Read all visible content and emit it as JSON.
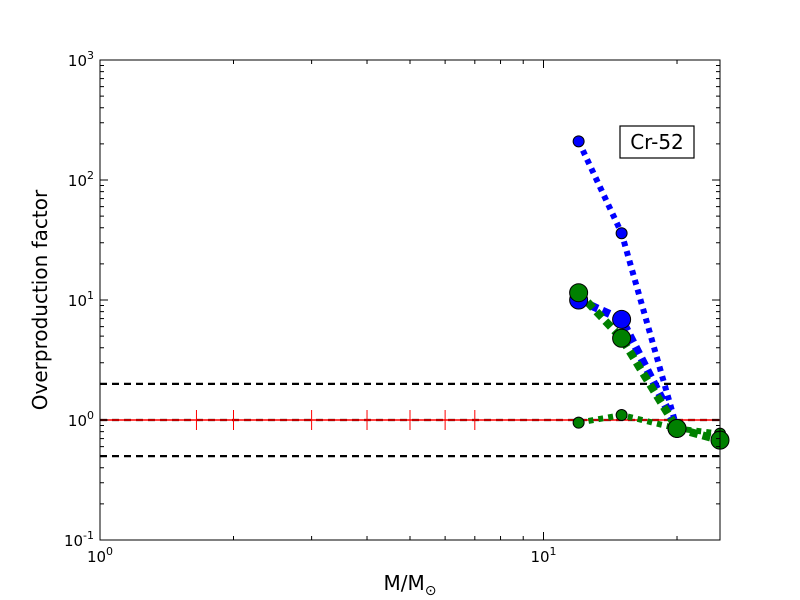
{
  "chart_data": {
    "type": "scatter",
    "title": "",
    "xlabel_main": "M/M",
    "xlabel_sub": "⊙",
    "ylabel": "Overproduction factor",
    "xscale": "log",
    "yscale": "log",
    "xlim": [
      1,
      25
    ],
    "ylim": [
      0.1,
      1000
    ],
    "grid": false,
    "annotation": "Cr-52",
    "x_ticks": [
      {
        "base": "10",
        "exp": "0",
        "value": 1
      },
      {
        "base": "10",
        "exp": "1",
        "value": 10
      }
    ],
    "y_ticks": [
      {
        "base": "10",
        "exp": "-1",
        "value": 0.1
      },
      {
        "base": "10",
        "exp": "0",
        "value": 1
      },
      {
        "base": "10",
        "exp": "1",
        "value": 10
      },
      {
        "base": "10",
        "exp": "2",
        "value": 100
      },
      {
        "base": "10",
        "exp": "3",
        "value": 1000
      }
    ],
    "reference_lines": [
      {
        "y": 2,
        "style": "dashed",
        "color": "#000000"
      },
      {
        "y": 1,
        "style": "dashed",
        "color": "#000000"
      },
      {
        "y": 0.5,
        "style": "dashed",
        "color": "#000000"
      },
      {
        "y": 1,
        "style": "solid",
        "color": "#ff0000"
      }
    ],
    "red_tick_x": [
      1.65,
      2,
      3,
      4,
      5,
      6,
      7
    ],
    "series": [
      {
        "color": "#0000ff",
        "x": [
          12,
          15,
          20
        ],
        "y": [
          210,
          36,
          0.85
        ],
        "marker_size": "small",
        "line_width": "thin"
      },
      {
        "color": "#0000ff",
        "x": [
          12,
          15,
          20
        ],
        "y": [
          10,
          6.9,
          0.85
        ],
        "marker_size": "large",
        "line_width": "thick"
      },
      {
        "color": "#008000",
        "x": [
          12,
          15,
          20,
          25
        ],
        "y": [
          0.95,
          1.1,
          0.85,
          0.77
        ],
        "marker_size": "small",
        "line_width": "thin"
      },
      {
        "color": "#008000",
        "x": [
          12,
          15,
          20,
          25
        ],
        "y": [
          11.5,
          4.8,
          0.85,
          0.68
        ],
        "marker_size": "large",
        "line_width": "thick"
      }
    ]
  }
}
